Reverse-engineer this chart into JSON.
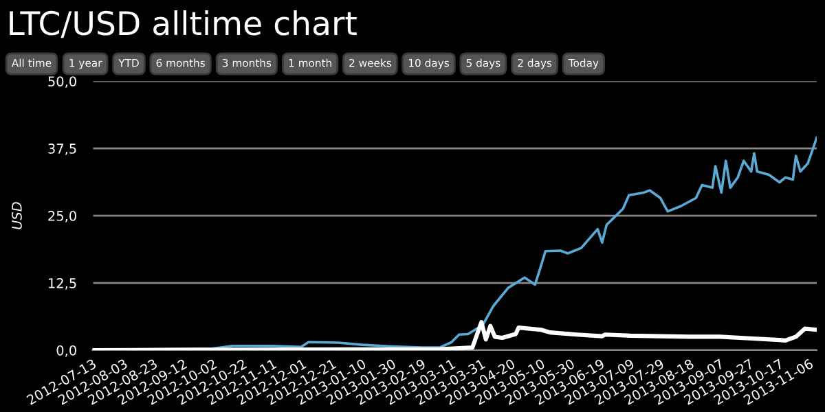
{
  "chart_data": {
    "type": "line",
    "title": "LTC/USD alltime chart",
    "ylabel": "USD",
    "annotations": [
      "All time",
      "1 year",
      "YTD",
      "6 months",
      "3 months",
      "1 month",
      "2 weeks",
      "10 days",
      "5 days",
      "2 days",
      "Today"
    ],
    "series": [
      {
        "color": "#5aaad6",
        "x": [
          "2012-07-13",
          "2012-08-23",
          "2012-10-02",
          "2012-10-15",
          "2012-11-11",
          "2012-11-30",
          "2012-12-05",
          "2012-12-25",
          "2013-01-10",
          "2013-01-30",
          "2013-02-19",
          "2013-03-03",
          "2013-03-11",
          "2013-03-16",
          "2013-03-22",
          "2013-04-01",
          "2013-04-08",
          "2013-04-18",
          "2013-04-29",
          "2013-05-06",
          "2013-05-09",
          "2013-05-13",
          "2013-05-23",
          "2013-05-28",
          "2013-06-06",
          "2013-06-17",
          "2013-06-20",
          "2013-06-23",
          "2013-07-04",
          "2013-07-08",
          "2013-07-18",
          "2013-07-22",
          "2013-07-29",
          "2013-08-03",
          "2013-08-12",
          "2013-08-22",
          "2013-08-26",
          "2013-09-02",
          "2013-09-04",
          "2013-09-08",
          "2013-09-11",
          "2013-09-14",
          "2013-09-19",
          "2013-09-23",
          "2013-09-28",
          "2013-09-30",
          "2013-10-02",
          "2013-10-10",
          "2013-10-17",
          "2013-10-21",
          "2013-10-26",
          "2013-10-28",
          "2013-10-31",
          "2013-11-05",
          "2013-11-11"
        ],
        "values": [
          0.1,
          0.2,
          0.3,
          0.8,
          0.8,
          0.6,
          1.5,
          1.4,
          1.0,
          0.7,
          0.5,
          0.5,
          1.5,
          2.9,
          3.0,
          4.7,
          8.2,
          11.6,
          13.5,
          12.2,
          14.8,
          18.4,
          18.5,
          18.0,
          19.0,
          22.5,
          20.0,
          23.3,
          26.3,
          28.8,
          29.3,
          29.7,
          28.3,
          25.8,
          26.8,
          28.3,
          30.7,
          30.2,
          34.2,
          29.3,
          35.2,
          30.2,
          32.1,
          35.2,
          33.2,
          36.6,
          33.2,
          32.6,
          31.2,
          32.1,
          31.7,
          36.1,
          33.2,
          34.7,
          39.5
        ]
      },
      {
        "color": "#ffffff",
        "x": [
          "2012-07-13",
          "2013-03-03",
          "2013-03-25",
          "2013-03-31",
          "2013-04-03",
          "2013-04-06",
          "2013-04-09",
          "2013-04-14",
          "2013-04-23",
          "2013-04-25",
          "2013-05-10",
          "2013-05-16",
          "2013-06-03",
          "2013-06-20",
          "2013-06-22",
          "2013-07-09",
          "2013-08-18",
          "2013-09-07",
          "2013-09-27",
          "2013-10-17",
          "2013-10-21",
          "2013-10-28",
          "2013-11-03",
          "2013-11-11"
        ],
        "values": [
          0.0,
          0.2,
          0.5,
          5.2,
          2.0,
          4.5,
          2.5,
          2.3,
          3.0,
          4.2,
          3.8,
          3.3,
          2.9,
          2.6,
          2.9,
          2.7,
          2.5,
          2.5,
          2.2,
          1.9,
          1.8,
          2.5,
          4.0,
          3.8
        ]
      }
    ],
    "xlim": [
      "2012-07-13",
      "2013-11-11"
    ],
    "xticks": [
      "2012-07-13",
      "2012-08-03",
      "2012-08-23",
      "2012-09-12",
      "2012-10-02",
      "2012-10-22",
      "2012-11-11",
      "2012-12-01",
      "2012-12-21",
      "2013-01-10",
      "2013-01-30",
      "2013-02-19",
      "2013-03-11",
      "2013-03-31",
      "2013-04-20",
      "2013-05-10",
      "2013-05-30",
      "2013-06-19",
      "2013-07-09",
      "2013-07-29",
      "2013-08-18",
      "2013-09-07",
      "2013-09-27",
      "2013-10-17",
      "2013-11-06"
    ],
    "ylim": [
      0,
      50
    ],
    "yticks": [
      {
        "value": 0,
        "label": "0,0"
      },
      {
        "value": 12.5,
        "label": "12,5"
      },
      {
        "value": 25,
        "label": "25,0"
      },
      {
        "value": 37.5,
        "label": "37,5"
      },
      {
        "value": 50,
        "label": "50,0"
      }
    ],
    "grid": "y",
    "legend": false,
    "marker": "none",
    "line_style": "solid"
  }
}
